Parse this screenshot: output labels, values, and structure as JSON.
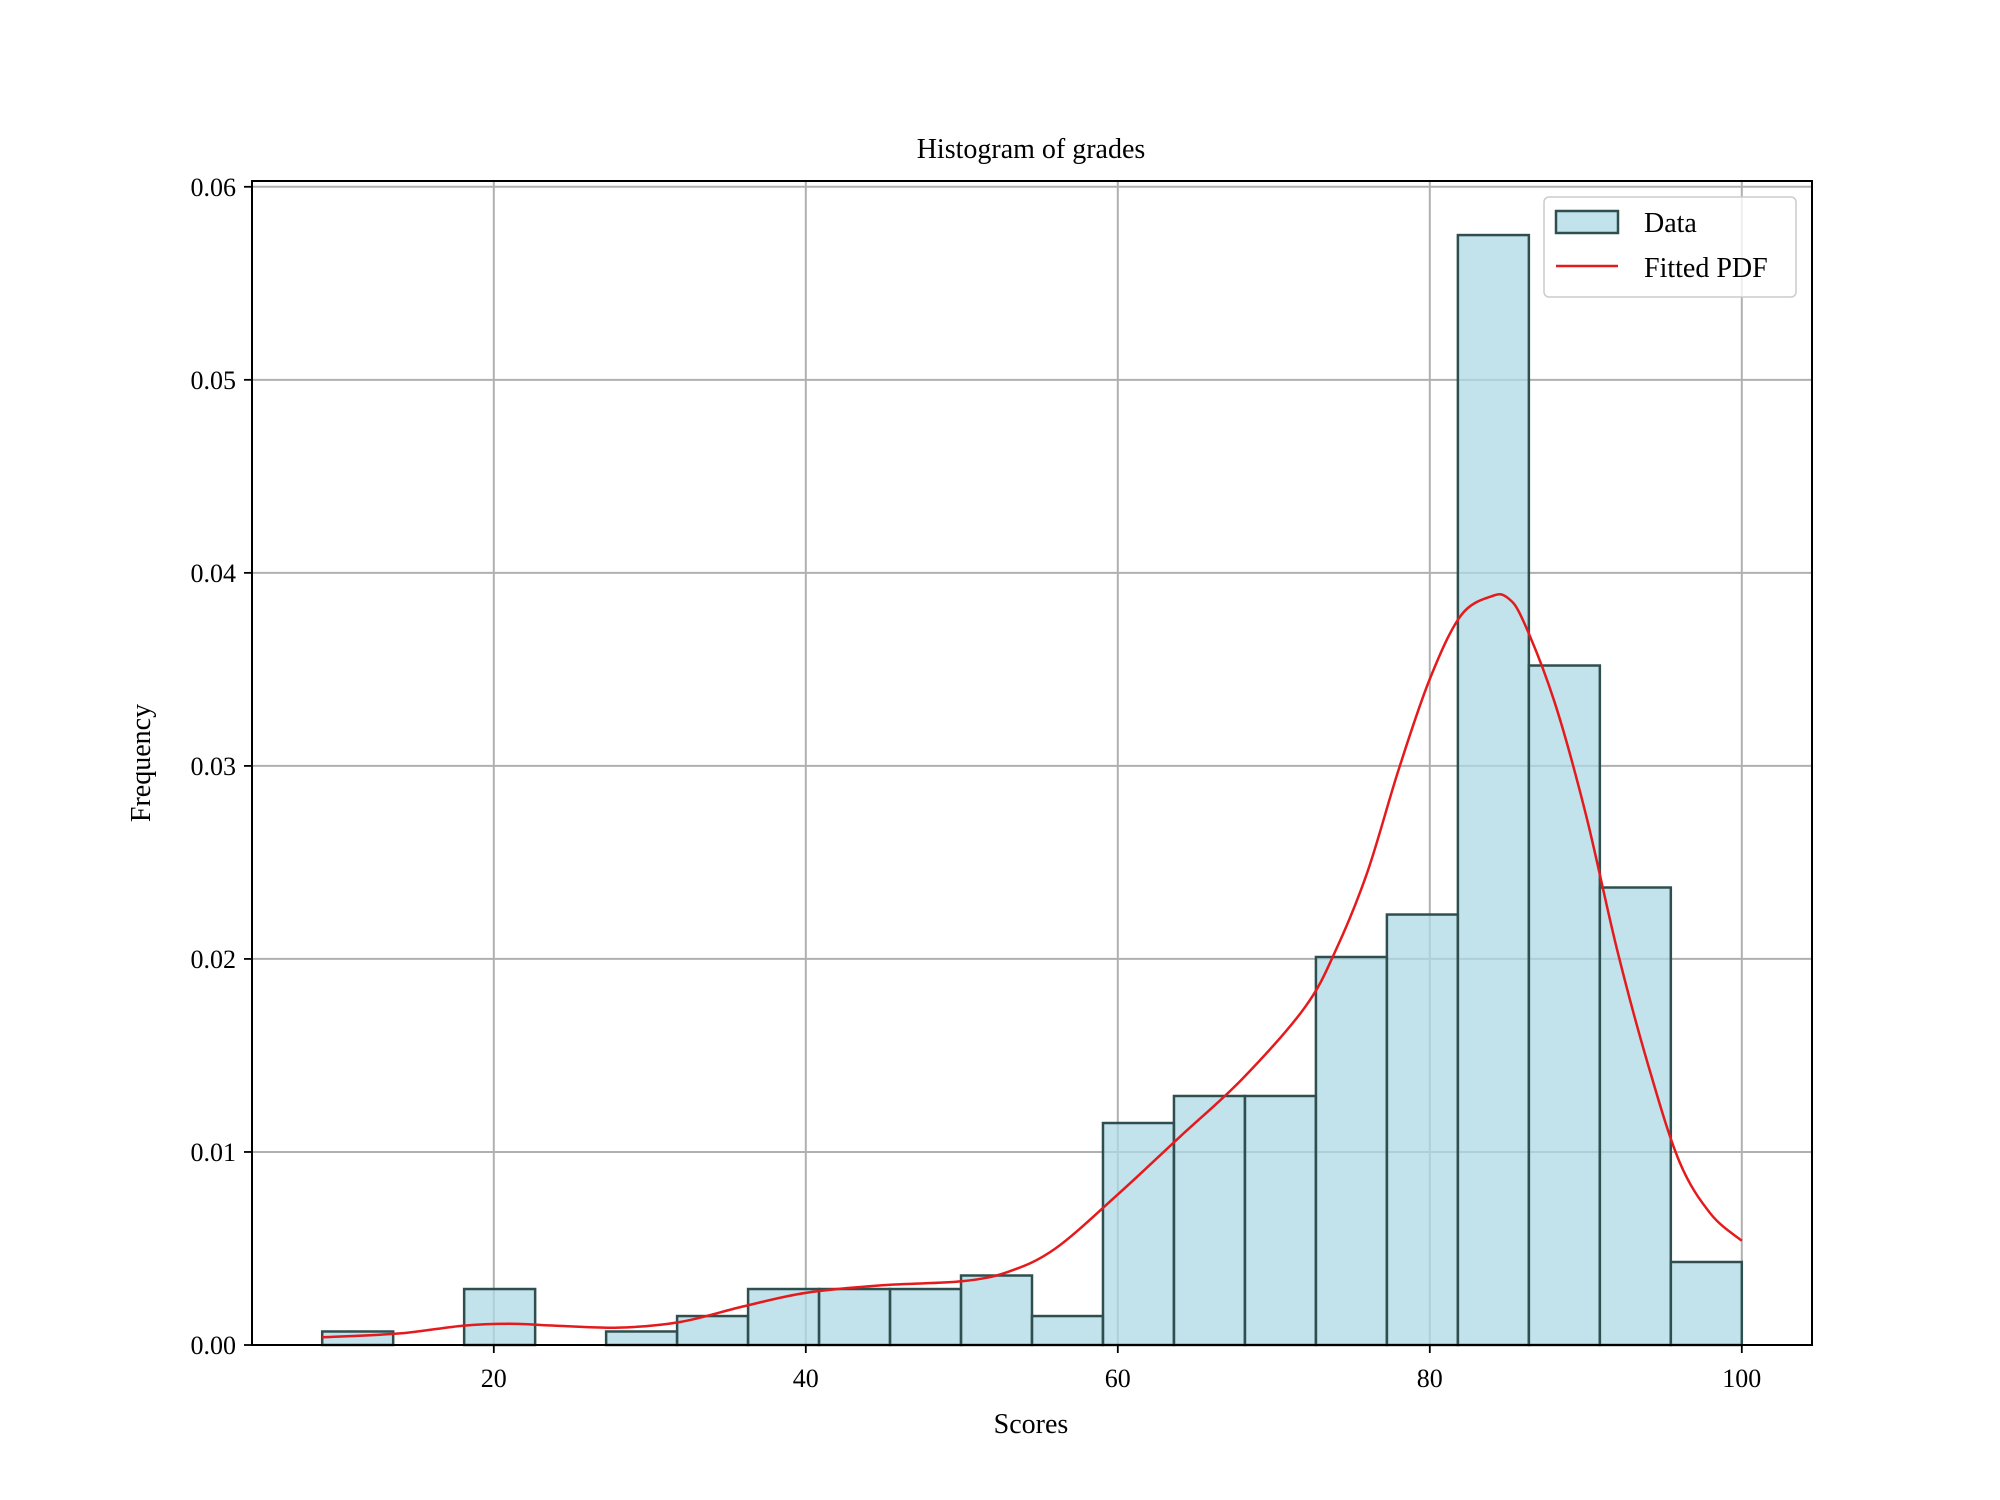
{
  "chart_data": {
    "type": "bar",
    "title": "Histogram of grades",
    "xlabel": "Scores",
    "ylabel": "Frequency",
    "xlim": [
      4.5,
      104.5
    ],
    "ylim": [
      0,
      0.0603
    ],
    "xticks": [
      20,
      40,
      60,
      80,
      100
    ],
    "yticks": [
      0.0,
      0.01,
      0.02,
      0.03,
      0.04,
      0.05,
      0.06
    ],
    "ytick_labels": [
      "0.00",
      "0.01",
      "0.02",
      "0.03",
      "0.04",
      "0.05",
      "0.06"
    ],
    "grid": true,
    "legend_position": "top-right",
    "series": [
      {
        "name": "Data",
        "type": "histogram",
        "bin_edges": [
          9.0,
          13.55,
          18.1,
          22.65,
          27.2,
          31.75,
          36.3,
          40.85,
          45.4,
          49.95,
          54.5,
          59.05,
          63.6,
          68.15,
          72.7,
          77.25,
          81.8,
          86.35,
          90.9,
          95.45,
          100.0
        ],
        "values": [
          0.0007,
          0.0,
          0.0029,
          0.0,
          0.0007,
          0.0015,
          0.0029,
          0.0029,
          0.0029,
          0.0036,
          0.0015,
          0.0115,
          0.0129,
          0.0129,
          0.0201,
          0.0223,
          0.0575,
          0.0352,
          0.0237,
          0.0043
        ],
        "color": "#add8e6",
        "edge_color": "#2f4f4f"
      },
      {
        "name": "Fitted PDF",
        "type": "line",
        "color": "#e41a1c",
        "x": [
          9,
          14,
          18,
          21,
          24,
          28,
          32,
          36,
          40,
          45,
          50,
          53,
          56,
          60,
          64,
          68,
          72,
          74,
          76,
          78,
          80,
          82,
          84,
          85,
          86,
          88,
          90,
          92,
          94,
          96,
          98,
          100
        ],
        "y": [
          0.0004,
          0.0006,
          0.001,
          0.0011,
          0.001,
          0.0009,
          0.0012,
          0.002,
          0.0027,
          0.0031,
          0.0033,
          0.0038,
          0.005,
          0.0078,
          0.0108,
          0.0138,
          0.0175,
          0.0205,
          0.0245,
          0.0298,
          0.0345,
          0.0378,
          0.0388,
          0.0387,
          0.0375,
          0.0333,
          0.0275,
          0.0205,
          0.0145,
          0.0095,
          0.0068,
          0.0054
        ]
      }
    ]
  }
}
